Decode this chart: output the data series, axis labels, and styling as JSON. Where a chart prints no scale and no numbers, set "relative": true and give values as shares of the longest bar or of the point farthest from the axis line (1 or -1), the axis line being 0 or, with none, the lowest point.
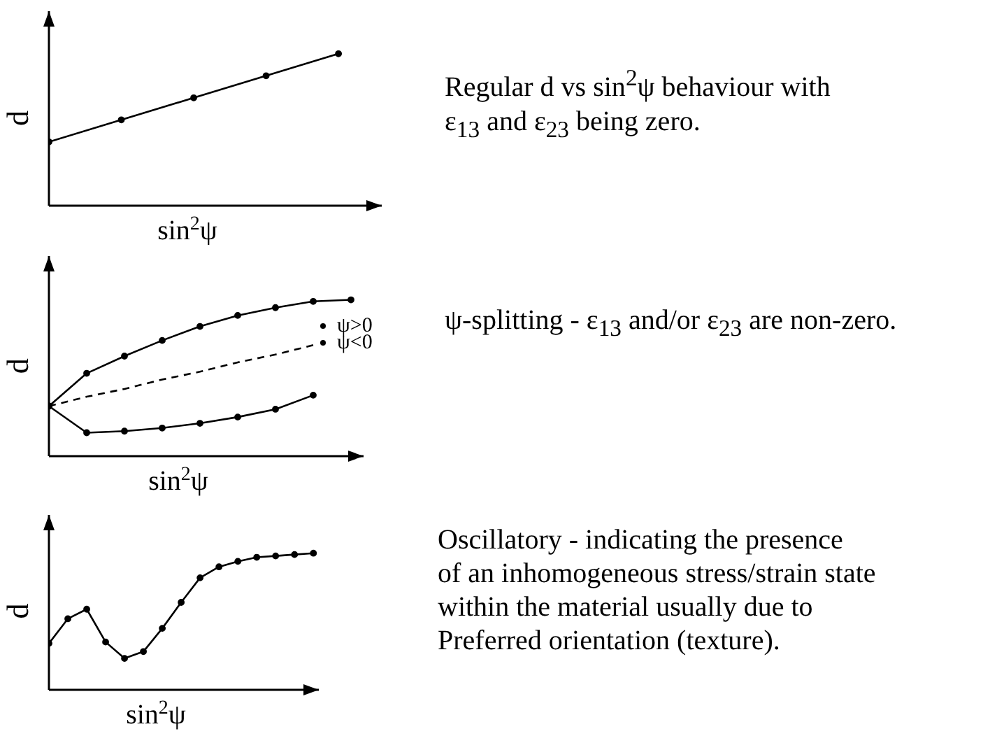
{
  "chart_data": [
    {
      "type": "line",
      "relative": true,
      "xlabel": "sin$^{2}$ψ",
      "ylabel": "d",
      "grid": false,
      "legend": false,
      "marker": "circle",
      "line_style": "solid",
      "annotations": [
        "Regular d vs sin$^{2}$ψ behaviour with\n ε$_{13}$ and ε$_{23}$ being zero."
      ],
      "categories": [
        null,
        null,
        null,
        null,
        null
      ],
      "series": [
        {
          "color": "#000000",
          "values": [
            0.42,
            0.565,
            0.71,
            0.855,
            1.0
          ]
        }
      ]
    },
    {
      "type": "line",
      "relative": true,
      "xlabel": "sin$^{2}$ψ",
      "ylabel": "d",
      "grid": false,
      "legend": "right",
      "marker": "circle",
      "line_style": "solid",
      "annotations": [
        "ψ-splitting - ε$_{13}$ and/or ε$_{23}$ are non-zero."
      ],
      "categories": [
        null,
        null,
        null,
        null,
        null,
        null,
        null,
        null,
        null
      ],
      "series": [
        {
          "name": "ψ>0",
          "color": "#000000",
          "values": [
            0.32,
            0.53,
            0.64,
            0.74,
            0.83,
            0.9,
            0.95,
            0.99,
            1.0
          ]
        },
        {
          "name": "ψ<0",
          "color": "#000000",
          "values": [
            0.32,
            0.15,
            0.16,
            0.18,
            0.21,
            0.25,
            0.3,
            0.39,
            null
          ]
        },
        {
          "color": "#000000",
          "line_style": "dashed",
          "marker": "none",
          "values": [
            0.32,
            0.38,
            0.43,
            0.49,
            0.54,
            0.6,
            0.65,
            0.71,
            null
          ]
        }
      ]
    },
    {
      "type": "line",
      "relative": true,
      "xlabel": "sin$^{2}$ψ",
      "ylabel": "d",
      "grid": false,
      "legend": false,
      "marker": "circle",
      "line_style": "solid",
      "annotations": [
        "Oscillatory - indicating the presence\nof an inhomogeneous stress/strain state\nwithin the material usually due to\nPreferred orientation (texture)."
      ],
      "categories": [
        null,
        null,
        null,
        null,
        null,
        null,
        null,
        null,
        null,
        null,
        null,
        null,
        null,
        null,
        null
      ],
      "series": [
        {
          "color": "#000000",
          "values": [
            0.34,
            0.52,
            0.59,
            0.35,
            0.23,
            0.28,
            0.45,
            0.64,
            0.82,
            0.9,
            0.94,
            0.97,
            0.98,
            0.99,
            1.0
          ]
        }
      ]
    }
  ]
}
